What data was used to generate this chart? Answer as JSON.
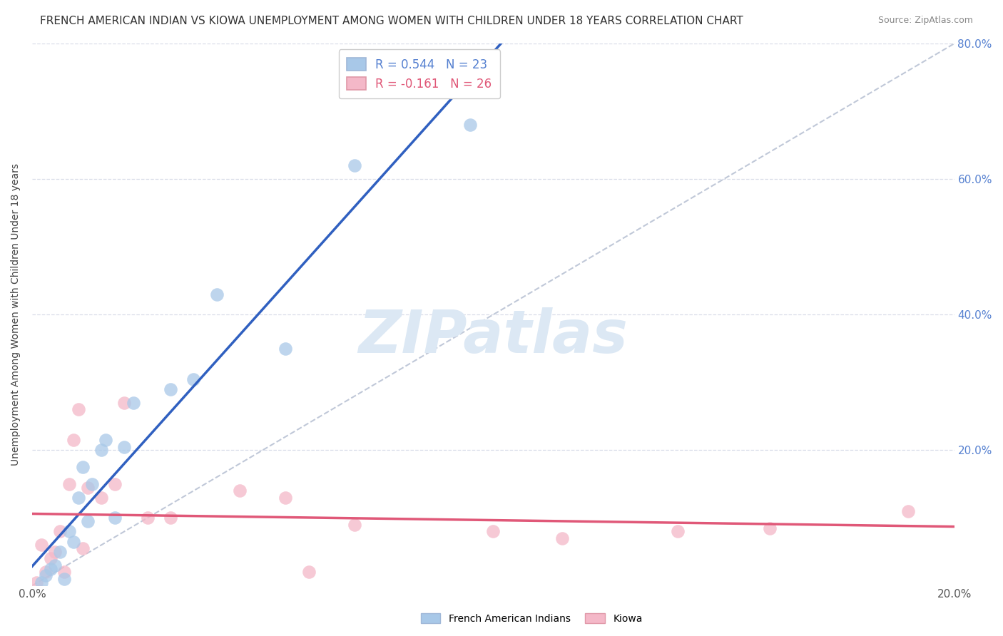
{
  "title": "FRENCH AMERICAN INDIAN VS KIOWA UNEMPLOYMENT AMONG WOMEN WITH CHILDREN UNDER 18 YEARS CORRELATION CHART",
  "source": "Source: ZipAtlas.com",
  "ylabel": "Unemployment Among Women with Children Under 18 years",
  "xlim": [
    0.0,
    0.2
  ],
  "ylim": [
    0.0,
    0.8
  ],
  "xticks": [
    0.0,
    0.05,
    0.1,
    0.15,
    0.2
  ],
  "yticks": [
    0.0,
    0.2,
    0.4,
    0.6,
    0.8
  ],
  "right_ytick_labels": [
    "",
    "20.0%",
    "40.0%",
    "60.0%",
    "80.0%"
  ],
  "xtick_labels": [
    "0.0%",
    "",
    "",
    "",
    "20.0%"
  ],
  "blue_R": 0.544,
  "blue_N": 23,
  "pink_R": -0.161,
  "pink_N": 26,
  "blue_label": "French American Indians",
  "pink_label": "Kiowa",
  "blue_color": "#a8c8e8",
  "pink_color": "#f4b8c8",
  "blue_edge_color": "#90b0d8",
  "pink_edge_color": "#e898a8",
  "blue_line_color": "#3060c0",
  "pink_line_color": "#e05878",
  "ref_line_color": "#c0c8d8",
  "background_color": "#ffffff",
  "grid_color": "#d8dce8",
  "blue_x": [
    0.002,
    0.003,
    0.004,
    0.005,
    0.006,
    0.007,
    0.008,
    0.009,
    0.01,
    0.011,
    0.012,
    0.013,
    0.015,
    0.016,
    0.018,
    0.02,
    0.022,
    0.03,
    0.035,
    0.04,
    0.055,
    0.07,
    0.095
  ],
  "blue_y": [
    0.005,
    0.015,
    0.025,
    0.03,
    0.05,
    0.01,
    0.08,
    0.065,
    0.13,
    0.175,
    0.095,
    0.15,
    0.2,
    0.215,
    0.1,
    0.205,
    0.27,
    0.29,
    0.305,
    0.43,
    0.35,
    0.62,
    0.68
  ],
  "pink_x": [
    0.001,
    0.002,
    0.003,
    0.004,
    0.005,
    0.006,
    0.007,
    0.008,
    0.009,
    0.01,
    0.011,
    0.012,
    0.015,
    0.018,
    0.02,
    0.025,
    0.03,
    0.045,
    0.055,
    0.06,
    0.07,
    0.1,
    0.115,
    0.14,
    0.16,
    0.19
  ],
  "pink_y": [
    0.005,
    0.06,
    0.02,
    0.04,
    0.05,
    0.08,
    0.02,
    0.15,
    0.215,
    0.26,
    0.055,
    0.145,
    0.13,
    0.15,
    0.27,
    0.1,
    0.1,
    0.14,
    0.13,
    0.02,
    0.09,
    0.08,
    0.07,
    0.08,
    0.085,
    0.11
  ],
  "watermark_text": "ZIPatlas",
  "watermark_color": "#dce8f4",
  "title_fontsize": 11,
  "axis_label_fontsize": 10,
  "tick_fontsize": 11,
  "tick_color_right": "#5580d0",
  "tick_color_bottom": "#555555",
  "legend_fontsize": 12
}
